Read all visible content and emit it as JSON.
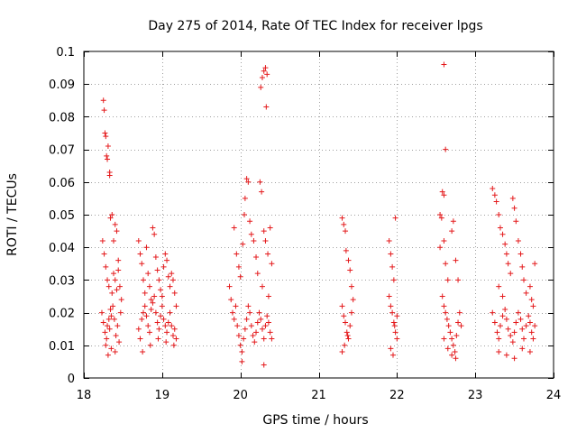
{
  "chart_data": {
    "type": "scatter",
    "title": "Day 275 of 2014, Rate Of TEC Index for receiver lpgs",
    "xlabel": "GPS time / hours",
    "ylabel": "ROTI / TECUs",
    "xlim": [
      18,
      24
    ],
    "ylim": [
      0,
      0.1
    ],
    "xticks": [
      18,
      19,
      20,
      21,
      22,
      23,
      24
    ],
    "yticks": [
      0,
      0.01,
      0.02,
      0.03,
      0.04,
      0.05,
      0.06,
      0.07,
      0.08,
      0.09,
      0.1
    ],
    "xtick_labels": [
      "18",
      "19",
      "20",
      "21",
      "22",
      "23",
      "24"
    ],
    "ytick_labels": [
      "0",
      "0.01",
      "0.02",
      "0.03",
      "0.04",
      "0.05",
      "0.06",
      "0.07",
      "0.08",
      "0.09",
      "0.1"
    ],
    "grid": true,
    "marker": "+",
    "color": "#e41a1c",
    "series": [
      {
        "name": "ROTI",
        "points": [
          [
            18.25,
            0.085
          ],
          [
            18.26,
            0.082
          ],
          [
            18.27,
            0.075
          ],
          [
            18.28,
            0.074
          ],
          [
            18.29,
            0.068
          ],
          [
            18.3,
            0.067
          ],
          [
            18.31,
            0.071
          ],
          [
            18.33,
            0.063
          ],
          [
            18.33,
            0.062
          ],
          [
            18.24,
            0.042
          ],
          [
            18.26,
            0.038
          ],
          [
            18.28,
            0.034
          ],
          [
            18.3,
            0.03
          ],
          [
            18.32,
            0.028
          ],
          [
            18.34,
            0.049
          ],
          [
            18.36,
            0.05
          ],
          [
            18.38,
            0.042
          ],
          [
            18.4,
            0.047
          ],
          [
            18.42,
            0.045
          ],
          [
            18.44,
            0.036
          ],
          [
            18.23,
            0.02
          ],
          [
            18.25,
            0.017
          ],
          [
            18.27,
            0.014
          ],
          [
            18.29,
            0.012
          ],
          [
            18.31,
            0.007
          ],
          [
            18.33,
            0.015
          ],
          [
            18.35,
            0.019
          ],
          [
            18.37,
            0.022
          ],
          [
            18.39,
            0.018
          ],
          [
            18.41,
            0.013
          ],
          [
            18.43,
            0.016
          ],
          [
            18.45,
            0.011
          ],
          [
            18.47,
            0.02
          ],
          [
            18.48,
            0.024
          ],
          [
            18.46,
            0.028
          ],
          [
            18.44,
            0.033
          ],
          [
            18.42,
            0.027
          ],
          [
            18.4,
            0.03
          ],
          [
            18.38,
            0.032
          ],
          [
            18.36,
            0.026
          ],
          [
            18.34,
            0.021
          ],
          [
            18.32,
            0.018
          ],
          [
            18.3,
            0.016
          ],
          [
            18.28,
            0.01
          ],
          [
            18.35,
            0.009
          ],
          [
            18.4,
            0.008
          ],
          [
            18.7,
            0.042
          ],
          [
            18.72,
            0.038
          ],
          [
            18.74,
            0.035
          ],
          [
            18.76,
            0.03
          ],
          [
            18.78,
            0.026
          ],
          [
            18.8,
            0.04
          ],
          [
            18.82,
            0.032
          ],
          [
            18.84,
            0.028
          ],
          [
            18.86,
            0.024
          ],
          [
            18.88,
            0.046
          ],
          [
            18.9,
            0.044
          ],
          [
            18.92,
            0.037
          ],
          [
            18.94,
            0.033
          ],
          [
            18.96,
            0.03
          ],
          [
            18.98,
            0.027
          ],
          [
            19.0,
            0.025
          ],
          [
            19.02,
            0.034
          ],
          [
            19.04,
            0.038
          ],
          [
            19.06,
            0.036
          ],
          [
            19.08,
            0.031
          ],
          [
            19.1,
            0.028
          ],
          [
            19.12,
            0.032
          ],
          [
            19.14,
            0.03
          ],
          [
            19.16,
            0.026
          ],
          [
            19.18,
            0.022
          ],
          [
            18.7,
            0.015
          ],
          [
            18.72,
            0.012
          ],
          [
            18.74,
            0.018
          ],
          [
            18.76,
            0.02
          ],
          [
            18.78,
            0.022
          ],
          [
            18.8,
            0.019
          ],
          [
            18.82,
            0.016
          ],
          [
            18.84,
            0.014
          ],
          [
            18.86,
            0.021
          ],
          [
            18.88,
            0.023
          ],
          [
            18.9,
            0.025
          ],
          [
            18.92,
            0.02
          ],
          [
            18.94,
            0.017
          ],
          [
            18.96,
            0.015
          ],
          [
            18.98,
            0.019
          ],
          [
            19.0,
            0.022
          ],
          [
            19.02,
            0.018
          ],
          [
            19.04,
            0.016
          ],
          [
            19.06,
            0.014
          ],
          [
            19.08,
            0.017
          ],
          [
            19.1,
            0.02
          ],
          [
            19.12,
            0.016
          ],
          [
            19.14,
            0.013
          ],
          [
            19.16,
            0.015
          ],
          [
            19.18,
            0.012
          ],
          [
            18.75,
            0.008
          ],
          [
            18.85,
            0.01
          ],
          [
            18.95,
            0.012
          ],
          [
            19.05,
            0.011
          ],
          [
            19.15,
            0.01
          ],
          [
            19.86,
            0.028
          ],
          [
            19.88,
            0.024
          ],
          [
            19.9,
            0.02
          ],
          [
            19.92,
            0.018
          ],
          [
            19.94,
            0.022
          ],
          [
            19.96,
            0.016
          ],
          [
            19.98,
            0.013
          ],
          [
            20.0,
            0.01
          ],
          [
            20.02,
            0.008
          ],
          [
            20.04,
            0.012
          ],
          [
            20.06,
            0.015
          ],
          [
            20.08,
            0.018
          ],
          [
            20.1,
            0.022
          ],
          [
            20.12,
            0.02
          ],
          [
            20.14,
            0.016
          ],
          [
            20.16,
            0.013
          ],
          [
            20.18,
            0.011
          ],
          [
            20.2,
            0.014
          ],
          [
            20.22,
            0.017
          ],
          [
            20.24,
            0.02
          ],
          [
            20.26,
            0.018
          ],
          [
            20.28,
            0.015
          ],
          [
            20.3,
            0.012
          ],
          [
            20.32,
            0.016
          ],
          [
            20.34,
            0.019
          ],
          [
            20.36,
            0.017
          ],
          [
            20.38,
            0.014
          ],
          [
            20.4,
            0.012
          ],
          [
            20.02,
            0.005
          ],
          [
            20.3,
            0.004
          ],
          [
            19.92,
            0.046
          ],
          [
            19.95,
            0.038
          ],
          [
            19.98,
            0.034
          ],
          [
            20.0,
            0.031
          ],
          [
            20.03,
            0.041
          ],
          [
            20.05,
            0.05
          ],
          [
            20.06,
            0.055
          ],
          [
            20.08,
            0.061
          ],
          [
            20.1,
            0.06
          ],
          [
            20.12,
            0.048
          ],
          [
            20.14,
            0.044
          ],
          [
            20.17,
            0.042
          ],
          [
            20.2,
            0.037
          ],
          [
            20.22,
            0.032
          ],
          [
            20.25,
            0.06
          ],
          [
            20.27,
            0.057
          ],
          [
            20.3,
            0.045
          ],
          [
            20.32,
            0.042
          ],
          [
            20.35,
            0.038
          ],
          [
            20.38,
            0.046
          ],
          [
            20.4,
            0.035
          ],
          [
            20.36,
            0.025
          ],
          [
            20.28,
            0.028
          ],
          [
            20.26,
            0.089
          ],
          [
            20.28,
            0.092
          ],
          [
            20.3,
            0.094
          ],
          [
            20.32,
            0.095
          ],
          [
            20.34,
            0.093
          ],
          [
            20.33,
            0.083
          ],
          [
            21.3,
            0.049
          ],
          [
            21.32,
            0.047
          ],
          [
            21.34,
            0.045
          ],
          [
            21.35,
            0.039
          ],
          [
            21.38,
            0.036
          ],
          [
            21.4,
            0.033
          ],
          [
            21.42,
            0.028
          ],
          [
            21.3,
            0.022
          ],
          [
            21.32,
            0.019
          ],
          [
            21.34,
            0.017
          ],
          [
            21.36,
            0.014
          ],
          [
            21.38,
            0.012
          ],
          [
            21.4,
            0.016
          ],
          [
            21.42,
            0.02
          ],
          [
            21.44,
            0.024
          ],
          [
            21.3,
            0.008
          ],
          [
            21.33,
            0.01
          ],
          [
            21.37,
            0.013
          ],
          [
            21.9,
            0.042
          ],
          [
            21.92,
            0.038
          ],
          [
            21.94,
            0.034
          ],
          [
            21.96,
            0.03
          ],
          [
            21.98,
            0.049
          ],
          [
            21.9,
            0.025
          ],
          [
            21.92,
            0.022
          ],
          [
            21.94,
            0.02
          ],
          [
            21.96,
            0.017
          ],
          [
            21.98,
            0.014
          ],
          [
            22.0,
            0.012
          ],
          [
            21.92,
            0.009
          ],
          [
            21.95,
            0.007
          ],
          [
            21.97,
            0.016
          ],
          [
            22.0,
            0.019
          ],
          [
            22.6,
            0.096
          ],
          [
            22.62,
            0.07
          ],
          [
            22.58,
            0.057
          ],
          [
            22.6,
            0.056
          ],
          [
            22.55,
            0.05
          ],
          [
            22.57,
            0.049
          ],
          [
            22.55,
            0.04
          ],
          [
            22.6,
            0.042
          ],
          [
            22.62,
            0.035
          ],
          [
            22.65,
            0.03
          ],
          [
            22.7,
            0.045
          ],
          [
            22.72,
            0.048
          ],
          [
            22.75,
            0.036
          ],
          [
            22.78,
            0.03
          ],
          [
            22.58,
            0.025
          ],
          [
            22.6,
            0.022
          ],
          [
            22.62,
            0.02
          ],
          [
            22.64,
            0.018
          ],
          [
            22.66,
            0.016
          ],
          [
            22.68,
            0.014
          ],
          [
            22.7,
            0.012
          ],
          [
            22.72,
            0.01
          ],
          [
            22.74,
            0.008
          ],
          [
            22.76,
            0.013
          ],
          [
            22.78,
            0.017
          ],
          [
            22.8,
            0.02
          ],
          [
            22.82,
            0.016
          ],
          [
            22.6,
            0.012
          ],
          [
            22.65,
            0.009
          ],
          [
            22.7,
            0.007
          ],
          [
            22.75,
            0.006
          ],
          [
            23.22,
            0.058
          ],
          [
            23.25,
            0.056
          ],
          [
            23.27,
            0.054
          ],
          [
            23.3,
            0.05
          ],
          [
            23.32,
            0.046
          ],
          [
            23.35,
            0.044
          ],
          [
            23.38,
            0.041
          ],
          [
            23.4,
            0.038
          ],
          [
            23.42,
            0.035
          ],
          [
            23.45,
            0.032
          ],
          [
            23.48,
            0.055
          ],
          [
            23.5,
            0.052
          ],
          [
            23.52,
            0.048
          ],
          [
            23.55,
            0.042
          ],
          [
            23.58,
            0.038
          ],
          [
            23.6,
            0.034
          ],
          [
            23.62,
            0.03
          ],
          [
            23.65,
            0.026
          ],
          [
            23.7,
            0.028
          ],
          [
            23.72,
            0.024
          ],
          [
            23.74,
            0.022
          ],
          [
            23.76,
            0.035
          ],
          [
            23.3,
            0.028
          ],
          [
            23.35,
            0.025
          ],
          [
            23.22,
            0.02
          ],
          [
            23.25,
            0.017
          ],
          [
            23.28,
            0.014
          ],
          [
            23.3,
            0.012
          ],
          [
            23.32,
            0.016
          ],
          [
            23.35,
            0.019
          ],
          [
            23.38,
            0.021
          ],
          [
            23.4,
            0.018
          ],
          [
            23.42,
            0.015
          ],
          [
            23.45,
            0.013
          ],
          [
            23.48,
            0.011
          ],
          [
            23.5,
            0.014
          ],
          [
            23.52,
            0.017
          ],
          [
            23.55,
            0.02
          ],
          [
            23.58,
            0.018
          ],
          [
            23.6,
            0.015
          ],
          [
            23.62,
            0.012
          ],
          [
            23.65,
            0.016
          ],
          [
            23.68,
            0.019
          ],
          [
            23.7,
            0.017
          ],
          [
            23.72,
            0.014
          ],
          [
            23.74,
            0.012
          ],
          [
            23.76,
            0.016
          ],
          [
            23.3,
            0.008
          ],
          [
            23.4,
            0.007
          ],
          [
            23.5,
            0.006
          ],
          [
            23.6,
            0.009
          ],
          [
            23.7,
            0.008
          ]
        ]
      }
    ]
  }
}
